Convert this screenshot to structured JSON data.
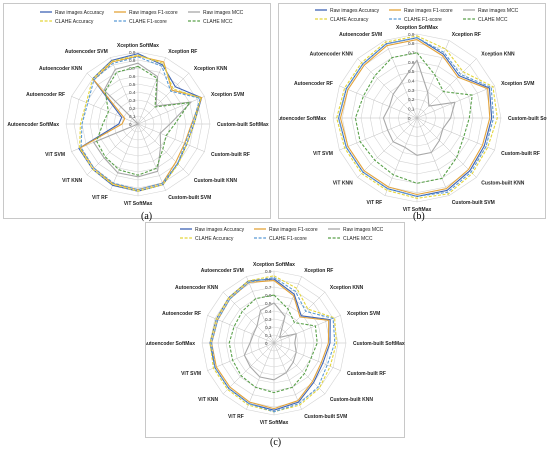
{
  "colors": {
    "grid": "#d4d4d4",
    "axis": "#bdbdbd",
    "series": [
      "#3e64b5",
      "#e3a33a",
      "#a8a8a8",
      "#e4d53b",
      "#5a9bd5",
      "#5aa14b"
    ],
    "dashed": [
      false,
      false,
      false,
      true,
      true,
      true
    ]
  },
  "chart_data": [
    {
      "type": "radar",
      "panel_label": "(a)",
      "axes": [
        "Xception SoftMax",
        "Xception RF",
        "Xception KNN",
        "Xception SVM",
        "Custom-built SoftMax",
        "Custom-built RF",
        "Custom-built KNN",
        "Custom-built SVM",
        "ViT SoftMax",
        "ViT RF",
        "ViT KNN",
        "ViT SVM",
        "Autoencoder SoftMax",
        "Autoencoder RF",
        "Autoencoder KNN",
        "Autoencoder SVM"
      ],
      "ticks": [
        "0",
        "0.1",
        "0.2",
        "0.3",
        "0.4",
        "0.5",
        "0.6",
        "0.7",
        "0.8",
        "0.9"
      ],
      "rmax": 0.9,
      "legend_rows": [
        [
          0,
          1,
          2
        ],
        [
          3,
          4,
          5
        ]
      ],
      "series": [
        {
          "name": "Raw images Accuracy",
          "values": [
            0.88,
            0.8,
            0.66,
            0.86,
            0.7,
            0.66,
            0.7,
            0.82,
            0.84,
            0.83,
            0.8,
            0.8,
            0.24,
            0.22,
            0.8,
            0.86
          ]
        },
        {
          "name": "Raw images F1-score",
          "values": [
            0.85,
            0.84,
            0.6,
            0.86,
            0.67,
            0.63,
            0.67,
            0.8,
            0.82,
            0.81,
            0.78,
            0.78,
            0.2,
            0.18,
            0.78,
            0.84
          ]
        },
        {
          "name": "Raw images MCC",
          "values": [
            0.76,
            0.64,
            0.32,
            0.72,
            0.4,
            0.3,
            0.4,
            0.64,
            0.66,
            0.66,
            0.6,
            0.6,
            0.0,
            0.0,
            0.6,
            0.74
          ]
        },
        {
          "name": "CLAHE Accuracy",
          "values": [
            0.86,
            0.82,
            0.62,
            0.85,
            0.7,
            0.66,
            0.71,
            0.82,
            0.84,
            0.82,
            0.8,
            0.79,
            0.72,
            0.7,
            0.8,
            0.85
          ]
        },
        {
          "name": "CLAHE F1-score",
          "values": [
            0.84,
            0.78,
            0.58,
            0.84,
            0.68,
            0.64,
            0.7,
            0.8,
            0.82,
            0.8,
            0.78,
            0.77,
            0.7,
            0.68,
            0.78,
            0.82
          ]
        },
        {
          "name": "CLAHE MCC",
          "values": [
            0.72,
            0.62,
            0.3,
            0.7,
            0.46,
            0.38,
            0.44,
            0.6,
            0.64,
            0.62,
            0.58,
            0.56,
            0.44,
            0.4,
            0.58,
            0.7
          ]
        }
      ]
    },
    {
      "type": "radar",
      "panel_label": "(b)",
      "axes": [
        "Xception SoftMax",
        "Xception RF",
        "Xception KNN",
        "Xception SVM",
        "Custom-built SoftMax",
        "Custom-built RF",
        "Custom-built KNN",
        "Custom-built SVM",
        "ViT SoftMax",
        "ViT RF",
        "ViT KNN",
        "ViT SVM",
        "Autoencoder SoftMax",
        "Autoencoder RF",
        "Autoencoder KNN",
        "Autoencoder SVM"
      ],
      "ticks": [
        "0",
        "0.1",
        "0.2",
        "0.3",
        "0.4",
        "0.5",
        "0.6",
        "0.7",
        "0.8",
        "0.9"
      ],
      "rmax": 0.9,
      "legend_rows": [
        [
          0,
          1,
          2
        ],
        [
          3,
          4,
          5
        ]
      ],
      "series": [
        {
          "name": "Raw images Accuracy",
          "values": [
            0.86,
            0.74,
            0.64,
            0.84,
            0.8,
            0.78,
            0.8,
            0.84,
            0.84,
            0.82,
            0.82,
            0.82,
            0.84,
            0.82,
            0.82,
            0.86
          ]
        },
        {
          "name": "Raw images F1-score",
          "values": [
            0.84,
            0.72,
            0.62,
            0.82,
            0.78,
            0.76,
            0.78,
            0.82,
            0.82,
            0.8,
            0.8,
            0.8,
            0.82,
            0.8,
            0.8,
            0.84
          ]
        },
        {
          "name": "Raw images MCC",
          "values": [
            0.62,
            0.3,
            0.18,
            0.44,
            0.36,
            0.3,
            0.34,
            0.4,
            0.4,
            0.34,
            0.36,
            0.34,
            0.36,
            0.32,
            0.36,
            0.42
          ]
        },
        {
          "name": "CLAHE Accuracy",
          "values": [
            0.88,
            0.8,
            0.7,
            0.88,
            0.86,
            0.82,
            0.84,
            0.88,
            0.86,
            0.84,
            0.84,
            0.84,
            0.86,
            0.84,
            0.84,
            0.88
          ]
        },
        {
          "name": "CLAHE F1-score",
          "values": [
            0.86,
            0.76,
            0.66,
            0.86,
            0.82,
            0.8,
            0.82,
            0.86,
            0.84,
            0.82,
            0.82,
            0.82,
            0.84,
            0.82,
            0.82,
            0.86
          ]
        },
        {
          "name": "CLAHE MCC",
          "values": [
            0.7,
            0.5,
            0.4,
            0.64,
            0.56,
            0.54,
            0.6,
            0.7,
            0.7,
            0.66,
            0.64,
            0.66,
            0.66,
            0.62,
            0.64,
            0.7
          ]
        }
      ]
    },
    {
      "type": "radar",
      "panel_label": "(c)",
      "axes": [
        "Xception SoftMax",
        "Xception RF",
        "Xception KNN",
        "Xception SVM",
        "Custom-built SoftMax",
        "Custom-built RF",
        "Custom-built KNN",
        "Custom-built SVM",
        "ViT SoftMax",
        "ViT RF",
        "ViT KNN",
        "ViT SVM",
        "Autoencoder SoftMax",
        "Autoencoder RF",
        "Autoencoder KNN",
        "Autoencoder SVM"
      ],
      "ticks": [
        "0",
        "0.1",
        "0.2",
        "0.3",
        "0.4",
        "0.5",
        "0.6",
        "0.7",
        "0.8",
        "0.9"
      ],
      "rmax": 0.9,
      "legend_rows": [
        [
          0,
          1,
          2
        ],
        [
          3,
          4,
          5
        ]
      ],
      "series": [
        {
          "name": "Raw images Accuracy",
          "values": [
            0.8,
            0.66,
            0.48,
            0.76,
            0.7,
            0.66,
            0.7,
            0.8,
            0.84,
            0.82,
            0.8,
            0.8,
            0.8,
            0.78,
            0.8,
            0.84
          ]
        },
        {
          "name": "Raw images F1-score",
          "values": [
            0.78,
            0.64,
            0.46,
            0.74,
            0.68,
            0.64,
            0.68,
            0.78,
            0.82,
            0.8,
            0.78,
            0.78,
            0.78,
            0.76,
            0.78,
            0.82
          ]
        },
        {
          "name": "Raw images MCC",
          "values": [
            0.5,
            0.36,
            0.1,
            0.3,
            0.26,
            0.3,
            0.34,
            0.4,
            0.46,
            0.46,
            0.42,
            0.4,
            0.3,
            0.28,
            0.3,
            0.44
          ]
        },
        {
          "name": "CLAHE Accuracy",
          "values": [
            0.84,
            0.74,
            0.6,
            0.82,
            0.78,
            0.76,
            0.8,
            0.84,
            0.86,
            0.84,
            0.82,
            0.82,
            0.8,
            0.78,
            0.8,
            0.84
          ]
        },
        {
          "name": "CLAHE F1-score",
          "values": [
            0.82,
            0.7,
            0.56,
            0.8,
            0.76,
            0.72,
            0.78,
            0.82,
            0.86,
            0.82,
            0.8,
            0.8,
            0.78,
            0.76,
            0.78,
            0.82
          ]
        },
        {
          "name": "CLAHE MCC",
          "values": [
            0.6,
            0.46,
            0.36,
            0.56,
            0.54,
            0.5,
            0.54,
            0.6,
            0.62,
            0.6,
            0.58,
            0.56,
            0.56,
            0.54,
            0.56,
            0.6
          ]
        }
      ]
    }
  ]
}
